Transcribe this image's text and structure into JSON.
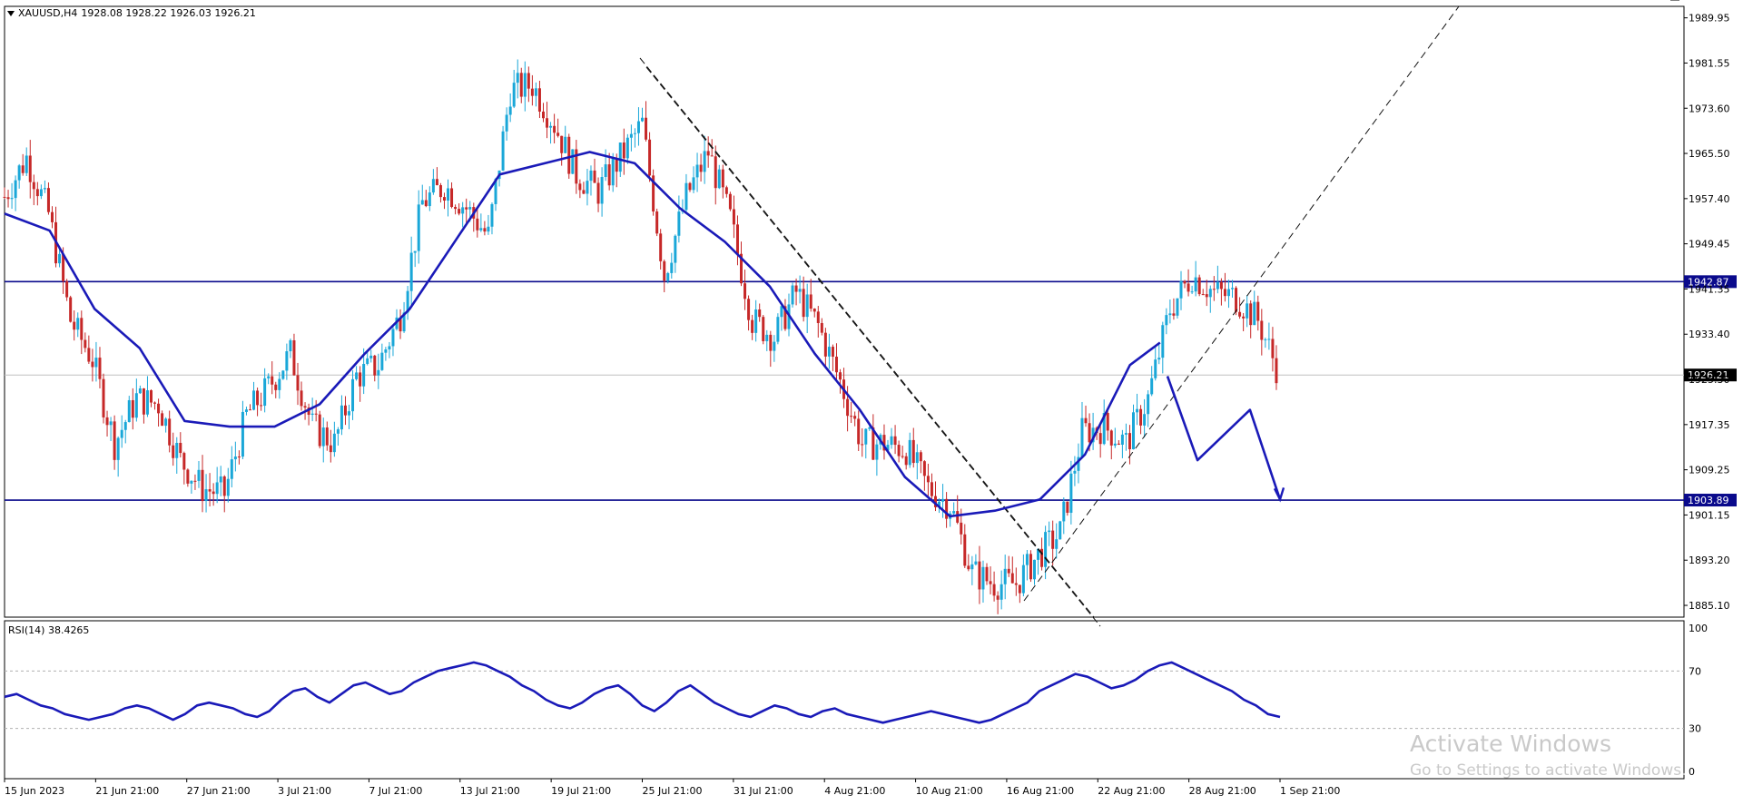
{
  "header": {
    "symbol": "XAUUSD,H4",
    "ohlc": "1928.08 1928.22 1926.03 1926.21"
  },
  "rsi_header": "RSI(14) 38.4265",
  "watermark": {
    "title": "Activate Windows",
    "subtitle": "Go to Settings to activate Windows."
  },
  "colors": {
    "up_candle": "#1aa7d8",
    "down_candle": "#c62828",
    "indicator": "#1a1ab8",
    "level_line": "#0a0a8c",
    "price_label_bg": "#0a0a8c",
    "current_price_bg": "#000000"
  },
  "chart_data": [
    {
      "type": "candlestick",
      "instrument": "XAUUSD",
      "timeframe": "H4",
      "y_ticks": [
        "1989.95",
        "1981.55",
        "1973.60",
        "1965.50",
        "1957.40",
        "1949.45",
        "1941.35",
        "1933.40",
        "1925.30",
        "1917.35",
        "1909.25",
        "1901.15",
        "1893.20",
        "1885.10"
      ],
      "ylim": [
        1883,
        1992
      ],
      "x_ticks": [
        "15 Jun 2023",
        "21 Jun 21:00",
        "27 Jun 21:00",
        "3 Jul 21:00",
        "7 Jul 21:00",
        "13 Jul 21:00",
        "19 Jul 21:00",
        "25 Jul 21:00",
        "31 Jul 21:00",
        "4 Aug 21:00",
        "10 Aug 21:00",
        "16 Aug 21:00",
        "22 Aug 21:00",
        "28 Aug 21:00",
        "1 Sep 21:00"
      ],
      "price_path": [
        {
          "x": "15 Jun 2023",
          "y": 1958
        },
        {
          "x": "16 Jun",
          "y": 1965
        },
        {
          "x": "19 Jun",
          "y": 1955
        },
        {
          "x": "20 Jun",
          "y": 1936
        },
        {
          "x": "21 Jun 21:00",
          "y": 1929
        },
        {
          "x": "22 Jun",
          "y": 1914
        },
        {
          "x": "23 Jun",
          "y": 1922
        },
        {
          "x": "26 Jun",
          "y": 1921
        },
        {
          "x": "27 Jun 21:00",
          "y": 1911
        },
        {
          "x": "28 Jun",
          "y": 1906
        },
        {
          "x": "29 Jun",
          "y": 1905
        },
        {
          "x": "30 Jun",
          "y": 1919
        },
        {
          "x": "3 Jul 21:00",
          "y": 1924
        },
        {
          "x": "4 Jul",
          "y": 1930
        },
        {
          "x": "5 Jul",
          "y": 1917
        },
        {
          "x": "6 Jul",
          "y": 1914
        },
        {
          "x": "7 Jul 21:00",
          "y": 1926
        },
        {
          "x": "10 Jul",
          "y": 1928
        },
        {
          "x": "11 Jul",
          "y": 1937
        },
        {
          "x": "12 Jul",
          "y": 1957
        },
        {
          "x": "13 Jul 21:00",
          "y": 1960
        },
        {
          "x": "14 Jul",
          "y": 1956
        },
        {
          "x": "17 Jul",
          "y": 1951
        },
        {
          "x": "18 Jul",
          "y": 1977
        },
        {
          "x": "19 Jul 21:00",
          "y": 1978
        },
        {
          "x": "20 Jul",
          "y": 1971
        },
        {
          "x": "21 Jul",
          "y": 1962
        },
        {
          "x": "24 Jul",
          "y": 1959
        },
        {
          "x": "25 Jul 21:00",
          "y": 1965
        },
        {
          "x": "26 Jul",
          "y": 1971
        },
        {
          "x": "27 Jul",
          "y": 1944
        },
        {
          "x": "28 Jul",
          "y": 1958
        },
        {
          "x": "31 Jul 21:00",
          "y": 1966
        },
        {
          "x": "1 Aug",
          "y": 1954
        },
        {
          "x": "2 Aug",
          "y": 1936
        },
        {
          "x": "3 Aug",
          "y": 1933
        },
        {
          "x": "4 Aug 21:00",
          "y": 1941
        },
        {
          "x": "7 Aug",
          "y": 1935
        },
        {
          "x": "8 Aug",
          "y": 1925
        },
        {
          "x": "9 Aug",
          "y": 1914
        },
        {
          "x": "10 Aug 21:00",
          "y": 1914
        },
        {
          "x": "11 Aug",
          "y": 1913
        },
        {
          "x": "14 Aug",
          "y": 1906
        },
        {
          "x": "15 Aug",
          "y": 1903
        },
        {
          "x": "16 Aug 21:00",
          "y": 1891
        },
        {
          "x": "17 Aug",
          "y": 1889
        },
        {
          "x": "18 Aug",
          "y": 1889
        },
        {
          "x": "21 Aug",
          "y": 1894
        },
        {
          "x": "22 Aug 21:00",
          "y": 1898
        },
        {
          "x": "23 Aug",
          "y": 1916
        },
        {
          "x": "24 Aug",
          "y": 1917
        },
        {
          "x": "25 Aug",
          "y": 1914
        },
        {
          "x": "28 Aug 21:00",
          "y": 1922
        },
        {
          "x": "29 Aug",
          "y": 1938
        },
        {
          "x": "30 Aug",
          "y": 1944
        },
        {
          "x": "31 Aug",
          "y": 1941
        },
        {
          "x": "1 Sep 21:00",
          "y": 1940
        },
        {
          "x": "4 Sep",
          "y": 1936
        },
        {
          "x": "5 Sep",
          "y": 1926
        }
      ],
      "moving_average": [
        {
          "x": 0,
          "y": 1955
        },
        {
          "x": 3,
          "y": 1952
        },
        {
          "x": 6,
          "y": 1938
        },
        {
          "x": 9,
          "y": 1931
        },
        {
          "x": 12,
          "y": 1918
        },
        {
          "x": 15,
          "y": 1917
        },
        {
          "x": 18,
          "y": 1917
        },
        {
          "x": 21,
          "y": 1921
        },
        {
          "x": 24,
          "y": 1930
        },
        {
          "x": 27,
          "y": 1938
        },
        {
          "x": 30,
          "y": 1950
        },
        {
          "x": 33,
          "y": 1962
        },
        {
          "x": 36,
          "y": 1964
        },
        {
          "x": 39,
          "y": 1966
        },
        {
          "x": 42,
          "y": 1964
        },
        {
          "x": 45,
          "y": 1956
        },
        {
          "x": 48,
          "y": 1950
        },
        {
          "x": 51,
          "y": 1942
        },
        {
          "x": 54,
          "y": 1930
        },
        {
          "x": 57,
          "y": 1920
        },
        {
          "x": 60,
          "y": 1908
        },
        {
          "x": 63,
          "y": 1901
        },
        {
          "x": 66,
          "y": 1902
        },
        {
          "x": 69,
          "y": 1904
        },
        {
          "x": 72,
          "y": 1912
        },
        {
          "x": 75,
          "y": 1928
        },
        {
          "x": 77,
          "y": 1932
        }
      ],
      "horizontal_levels": [
        {
          "price": 1942.87,
          "label": "1942.87"
        },
        {
          "price": 1903.89,
          "label": "1903.89"
        }
      ],
      "current_price": {
        "price": 1926.21,
        "label": "1926.21"
      },
      "projection_path": [
        {
          "x": 77.5,
          "y": 1926
        },
        {
          "x": 79.5,
          "y": 1911
        },
        {
          "x": 83,
          "y": 1920
        },
        {
          "x": 85,
          "y": 1904
        }
      ]
    },
    {
      "type": "line",
      "name": "RSI(14)",
      "last_value": 38.4265,
      "y_ticks": [
        "100",
        "70",
        "30",
        "0"
      ],
      "ylim": [
        0,
        100
      ],
      "levels": [
        70,
        30
      ],
      "values": [
        52,
        54,
        50,
        46,
        44,
        40,
        38,
        36,
        38,
        40,
        44,
        46,
        44,
        40,
        36,
        40,
        46,
        48,
        46,
        44,
        40,
        38,
        42,
        50,
        56,
        58,
        52,
        48,
        54,
        60,
        62,
        58,
        54,
        56,
        62,
        66,
        70,
        72,
        74,
        76,
        74,
        70,
        66,
        60,
        56,
        50,
        46,
        44,
        48,
        54,
        58,
        60,
        54,
        46,
        42,
        48,
        56,
        60,
        54,
        48,
        44,
        40,
        38,
        42,
        46,
        44,
        40,
        38,
        42,
        44,
        40,
        38,
        36,
        34,
        36,
        38,
        40,
        42,
        40,
        38,
        36,
        34,
        36,
        40,
        44,
        48,
        56,
        60,
        64,
        68,
        66,
        62,
        58,
        60,
        64,
        70,
        74,
        76,
        72,
        68,
        64,
        60,
        56,
        50,
        46,
        40,
        38
      ]
    }
  ]
}
